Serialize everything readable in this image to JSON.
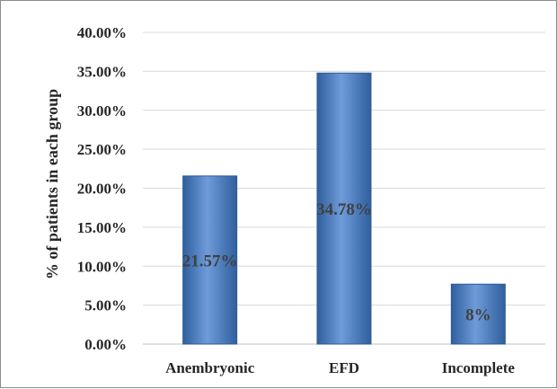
{
  "chart_data": {
    "type": "bar",
    "categories": [
      "Anembryonic",
      "EFD",
      "Incomplete"
    ],
    "values": [
      21.57,
      34.78,
      7.69
    ],
    "data_labels": [
      "21.57%",
      "34.78%",
      "8%"
    ],
    "ylabel": "% of patients in each group",
    "xlabel": "",
    "ylim": [
      0,
      40
    ],
    "yticks": [
      "0.00%",
      "5.00%",
      "10.00%",
      "15.00%",
      "20.00%",
      "25.00%",
      "30.00%",
      "35.00%",
      "40.00%"
    ],
    "grid": true,
    "legend": "none",
    "colors": {
      "bar_light": "#6f9bd9",
      "bar_mid": "#4a7ec8",
      "bar_dark": "#2f5f9e",
      "bar_edge": "#2e5a96",
      "gridline": "#d9d9d9",
      "text": "#262626"
    }
  }
}
